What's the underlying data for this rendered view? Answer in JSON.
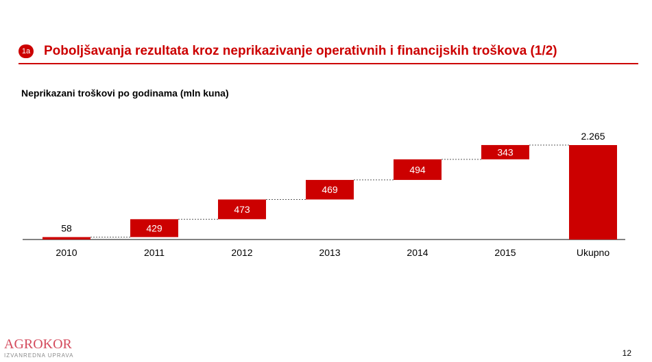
{
  "header": {
    "badge": "1a",
    "title": "Poboljšavanja rezultata kroz neprikazivanje operativnih i financijskih troškova (1/2)"
  },
  "chart_data": {
    "type": "bar",
    "subtype": "waterfall",
    "title": "Neprikazani troškovi po godinama (mln kuna)",
    "categories": [
      "2010",
      "2011",
      "2012",
      "2013",
      "2014",
      "2015",
      "Ukupno"
    ],
    "values": [
      58,
      429,
      473,
      469,
      494,
      343,
      2265
    ],
    "labels": [
      "58",
      "429",
      "473",
      "469",
      "494",
      "343",
      "2.265"
    ],
    "is_total": [
      false,
      false,
      false,
      false,
      false,
      false,
      true
    ],
    "ylim": [
      0,
      2300
    ],
    "colors": {
      "bar": "#cc0000",
      "axis": "#595959",
      "connector": "#595959"
    }
  },
  "footer": {
    "logo_name": "AGROKOR",
    "logo_sub": "IZVANREDNA UPRAVA",
    "page_number": "12"
  }
}
